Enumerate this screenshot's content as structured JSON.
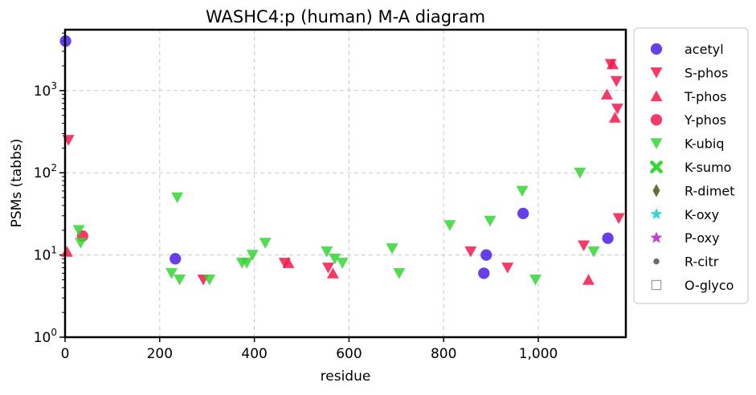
{
  "chart_data": {
    "type": "scatter",
    "title": "WASHC4:p (human) M-A diagram",
    "xlabel": "residue",
    "ylabel": "PSMs (tabbs)",
    "xlim": [
      0,
      1185
    ],
    "ylim": [
      1,
      5500
    ],
    "yscale": "log",
    "grid": true,
    "legend_position": "outside-right",
    "x_ticks": [
      0,
      200,
      400,
      600,
      800,
      1000
    ],
    "x_tick_labels": [
      "0",
      "200",
      "400",
      "600",
      "800",
      "1,000"
    ],
    "y_ticks": [
      1,
      10,
      100,
      1000
    ],
    "series": [
      {
        "name": "acetyl",
        "marker": "circle",
        "color": "#4b1de8",
        "points": [
          [
            1,
            4000
          ],
          [
            233,
            9
          ],
          [
            885,
            6
          ],
          [
            890,
            10
          ],
          [
            968,
            32
          ],
          [
            1147,
            16
          ]
        ]
      },
      {
        "name": "S-phos",
        "marker": "triangle-down",
        "color": "#f5184a",
        "points": [
          [
            7,
            250
          ],
          [
            292,
            5
          ],
          [
            464,
            8
          ],
          [
            556,
            7
          ],
          [
            857,
            11
          ],
          [
            935,
            7
          ],
          [
            1096,
            13
          ],
          [
            1153,
            2100
          ],
          [
            1165,
            1300
          ],
          [
            1167,
            600
          ],
          [
            1170,
            28
          ]
        ]
      },
      {
        "name": "T-phos",
        "marker": "triangle-up",
        "color": "#f5184a",
        "points": [
          [
            4,
            11
          ],
          [
            472,
            8
          ],
          [
            566,
            6
          ],
          [
            1106,
            5
          ],
          [
            1145,
            900
          ],
          [
            1157,
            2100
          ],
          [
            1162,
            470
          ]
        ]
      },
      {
        "name": "Y-phos",
        "marker": "circle",
        "color": "#f5184a",
        "points": [
          [
            37,
            17
          ]
        ]
      },
      {
        "name": "K-ubiq",
        "marker": "triangle-down",
        "color": "#33d633",
        "points": [
          [
            29,
            20
          ],
          [
            33,
            14
          ],
          [
            225,
            6
          ],
          [
            237,
            50
          ],
          [
            242,
            5
          ],
          [
            305,
            5
          ],
          [
            374,
            8
          ],
          [
            384,
            8
          ],
          [
            396,
            10
          ],
          [
            423,
            14
          ],
          [
            553,
            11
          ],
          [
            570,
            9
          ],
          [
            586,
            8
          ],
          [
            691,
            12
          ],
          [
            706,
            6
          ],
          [
            813,
            23
          ],
          [
            898,
            26
          ],
          [
            966,
            60
          ],
          [
            994,
            5
          ],
          [
            1088,
            100
          ],
          [
            1117,
            11
          ]
        ]
      },
      {
        "name": "K-sumo",
        "marker": "x",
        "color": "#33d633",
        "points": []
      },
      {
        "name": "R-dimet",
        "marker": "diamond",
        "color": "#6b6b3a",
        "points": []
      },
      {
        "name": "K-oxy",
        "marker": "star",
        "color": "#33d6d6",
        "points": []
      },
      {
        "name": "P-oxy",
        "marker": "star",
        "color": "#c83cd6",
        "points": []
      },
      {
        "name": "R-citr",
        "marker": "dot",
        "color": "#6b6b6b",
        "points": []
      },
      {
        "name": "O-glyco",
        "marker": "square-open",
        "color": "#9a9a9a",
        "points": []
      }
    ]
  }
}
